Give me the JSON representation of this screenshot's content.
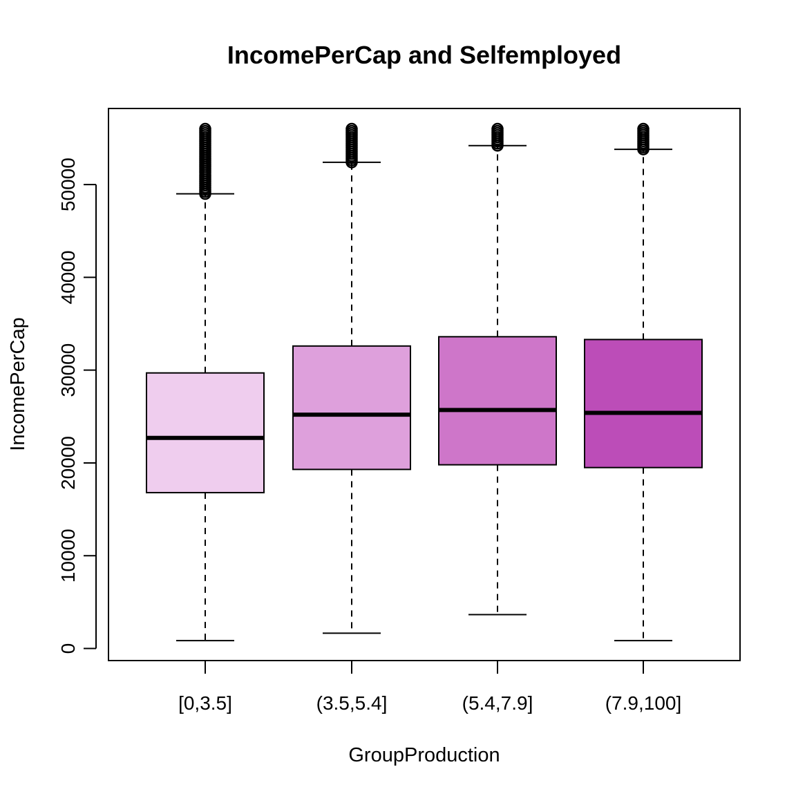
{
  "chart_data": {
    "type": "box",
    "title": "IncomePerCap and Selfemployed",
    "xlabel": "GroupProduction",
    "ylabel": "IncomePerCap",
    "ylim": [
      -1300,
      58200
    ],
    "yticks": [
      0,
      10000,
      20000,
      30000,
      40000,
      50000
    ],
    "ytick_labels": [
      "0",
      "10000",
      "20000",
      "30000",
      "40000",
      "50000"
    ],
    "grid": false,
    "categories": [
      "[0,3.5]",
      "(3.5,5.4]",
      "(5.4,7.9]",
      "(7.9,100]"
    ],
    "colors": [
      "#efcdee",
      "#dea0dc",
      "#ce76c9",
      "#bc4db8"
    ],
    "boxes": [
      {
        "category": "[0,3.5]",
        "whisker_low": 850,
        "q1": 16800,
        "median": 22700,
        "q3": 29700,
        "whisker_high": 49000,
        "outliers_range": [
          49000,
          56000
        ]
      },
      {
        "category": "(3.5,5.4]",
        "whisker_low": 1650,
        "q1": 19300,
        "median": 25200,
        "q3": 32600,
        "whisker_high": 52400,
        "outliers_range": [
          52400,
          56000
        ]
      },
      {
        "category": "(5.4,7.9]",
        "whisker_low": 3650,
        "q1": 19800,
        "median": 25700,
        "q3": 33600,
        "whisker_high": 54200,
        "outliers_range": [
          54200,
          56000
        ]
      },
      {
        "category": "(7.9,100]",
        "whisker_low": 850,
        "q1": 19500,
        "median": 25400,
        "q3": 33300,
        "whisker_high": 53800,
        "outliers_range": [
          53800,
          56000
        ]
      }
    ]
  }
}
